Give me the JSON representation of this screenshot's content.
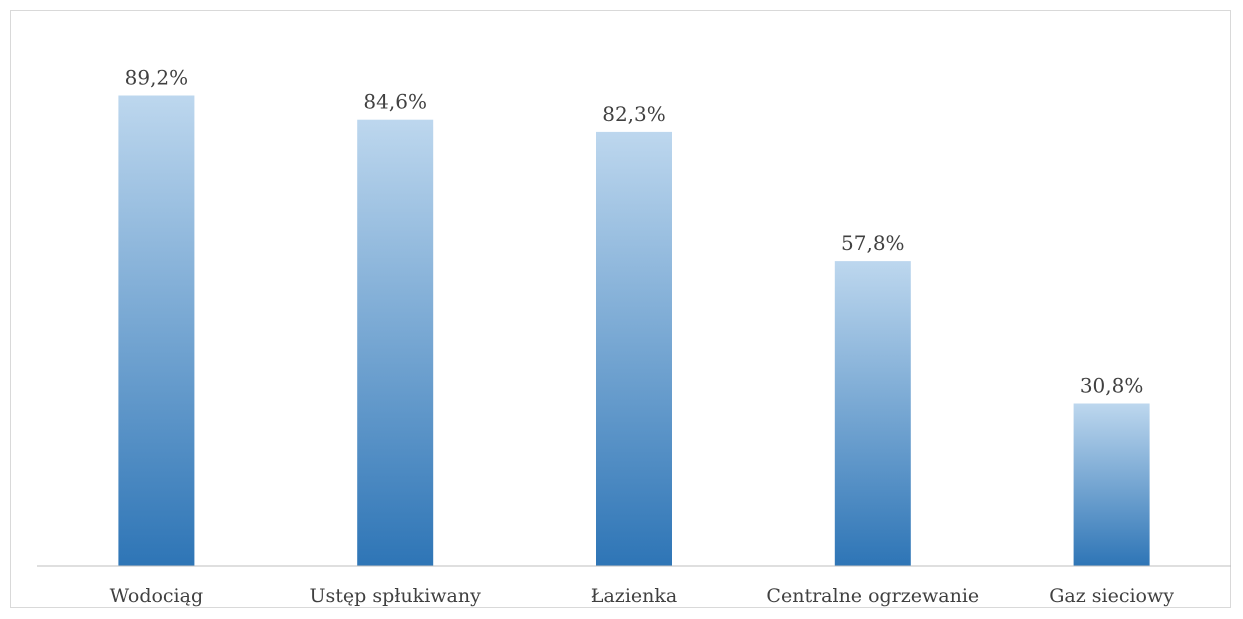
{
  "chart_data": {
    "type": "bar",
    "categories": [
      "Wodociąg",
      "Ustęp spłukiwany",
      "Łazienka",
      "Centralne ogrzewanie",
      "Gaz sieciowy"
    ],
    "values": [
      89.2,
      84.6,
      82.3,
      57.8,
      30.8
    ],
    "data_labels": [
      "89,2%",
      "84,6%",
      "82,3%",
      "57,8%",
      "30,8%"
    ],
    "unit": "%",
    "title": "",
    "xlabel": "",
    "ylabel": "",
    "ylim": [
      0,
      100
    ],
    "grid": false,
    "legend": "none",
    "colors": {
      "bar_top": "#bdd7ee",
      "bar_bottom": "#2e75b6",
      "axis": "#bfbfbf",
      "text": "#404040",
      "frame": "#d9d9d9"
    }
  }
}
